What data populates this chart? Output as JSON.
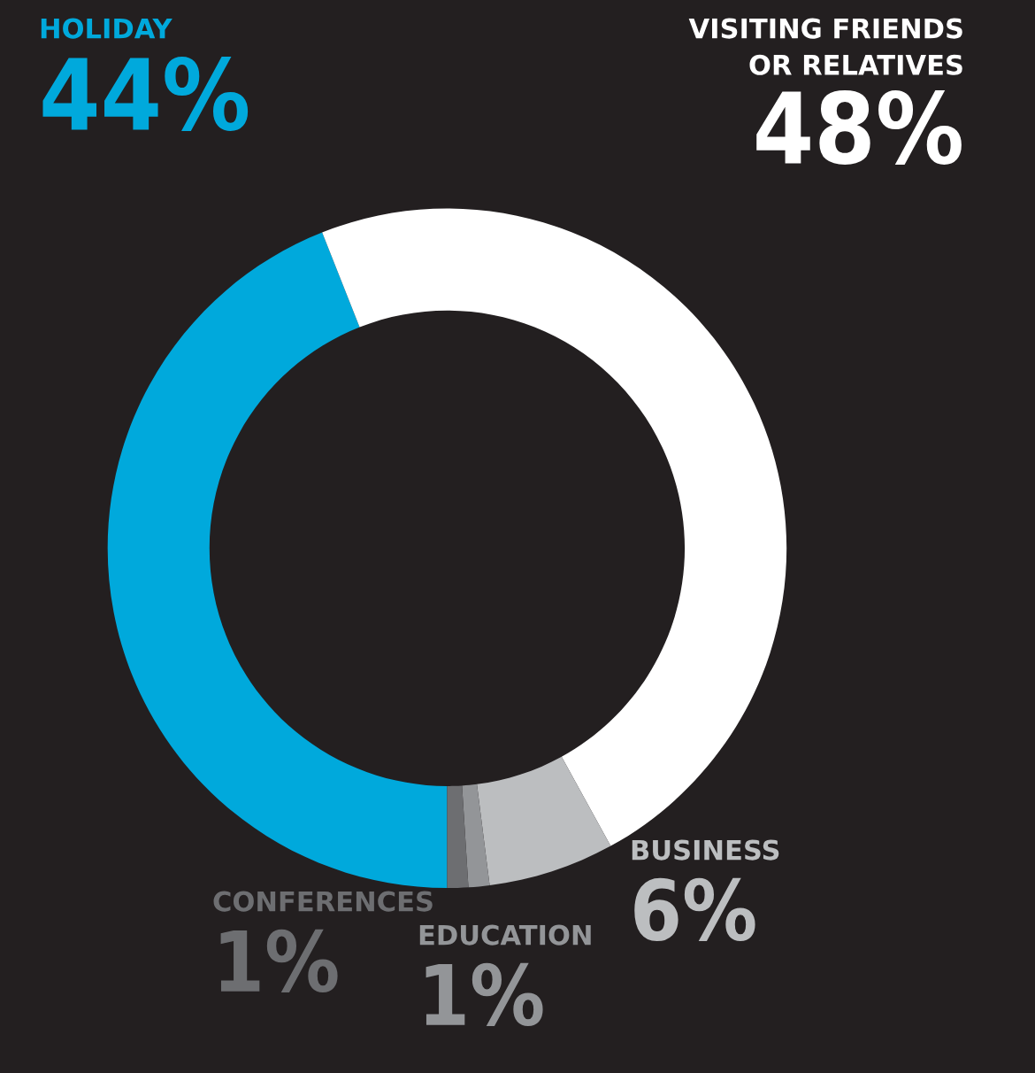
{
  "chart_data": {
    "type": "donut",
    "categories": [
      "HOLIDAY",
      "VISITING FRIENDS\nOR RELATIVES",
      "BUSINESS",
      "EDUCATION",
      "CONFERENCES"
    ],
    "values": [
      44,
      48,
      6,
      1,
      1
    ],
    "colors": [
      "#00a9dc",
      "#ffffff",
      "#bcbec0",
      "#939598",
      "#6d6e71"
    ],
    "value_labels": [
      "44%",
      "48%",
      "6%",
      "1%",
      "1%"
    ]
  }
}
